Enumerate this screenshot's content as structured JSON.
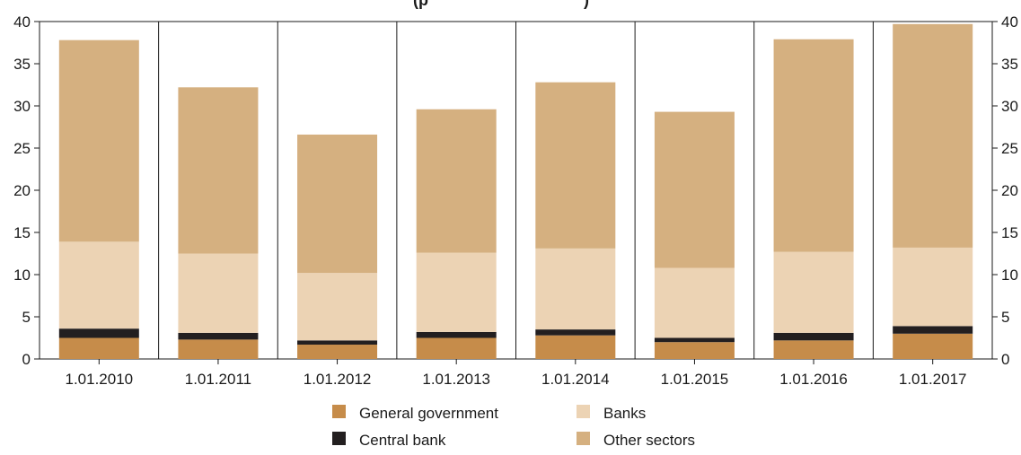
{
  "chart_data": {
    "type": "bar",
    "stacked": true,
    "title_fragment": "(p",
    "title_fragment_end": ")",
    "categories": [
      "1.01.2010",
      "1.01.2011",
      "1.01.2012",
      "1.01.2013",
      "1.01.2014",
      "1.01.2015",
      "1.01.2016",
      "1.01.2017"
    ],
    "series": [
      {
        "name": "General government",
        "color": "#c68c4a",
        "values": [
          2.5,
          2.3,
          1.7,
          2.5,
          2.8,
          2.0,
          2.2,
          3.0
        ]
      },
      {
        "name": "Central bank",
        "color": "#231f20",
        "values": [
          1.1,
          0.8,
          0.5,
          0.7,
          0.7,
          0.5,
          0.9,
          0.9
        ]
      },
      {
        "name": "Banks",
        "color": "#ecd3b4",
        "values": [
          10.3,
          9.4,
          8.0,
          9.4,
          9.6,
          8.3,
          9.6,
          9.3
        ]
      },
      {
        "name": "Other sectors",
        "color": "#d5b080",
        "values": [
          23.9,
          19.7,
          16.4,
          17.0,
          19.7,
          18.5,
          25.2,
          26.5
        ]
      }
    ],
    "ylim": [
      0,
      40
    ],
    "yticks": [
      0,
      5,
      10,
      15,
      20,
      25,
      30,
      35,
      40
    ],
    "grid": "vertical",
    "legend": "bottom-center",
    "axes": "left-and-right"
  }
}
